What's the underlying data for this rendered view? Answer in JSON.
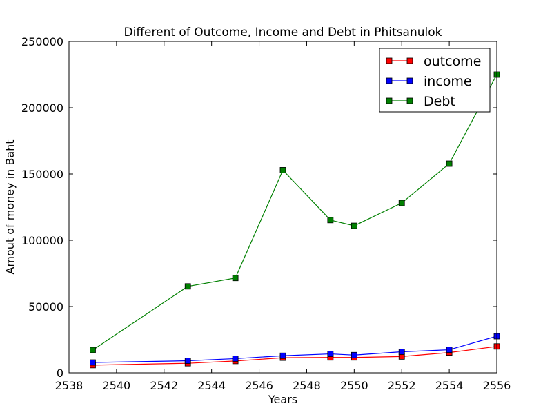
{
  "chart_data": {
    "type": "line",
    "title": "Different of Outcome, Income and Debt in Phitsanulok",
    "xlabel": "Years",
    "ylabel": "Amout of money in Baht",
    "xlim": [
      2538,
      2556
    ],
    "ylim": [
      0,
      250000
    ],
    "xticks": [
      2538,
      2540,
      2542,
      2544,
      2546,
      2548,
      2550,
      2552,
      2554,
      2556
    ],
    "yticks": [
      0,
      50000,
      100000,
      150000,
      200000,
      250000
    ],
    "x": [
      2539,
      2543,
      2545,
      2547,
      2549,
      2550,
      2552,
      2554,
      2556
    ],
    "grid": false,
    "legend_position": "top-right",
    "series": [
      {
        "name": "outcome",
        "color": "#ff0000",
        "marker": "square",
        "values": [
          5800,
          7200,
          8900,
          11400,
          11600,
          11600,
          12300,
          15300,
          19900
        ]
      },
      {
        "name": "income",
        "color": "#0000ff",
        "marker": "square",
        "values": [
          7800,
          9100,
          10700,
          12900,
          14300,
          13400,
          15900,
          17400,
          27600
        ]
      },
      {
        "name": "Debt",
        "color": "#008000",
        "marker": "square",
        "values": [
          17200,
          65200,
          71500,
          152900,
          115200,
          110900,
          128100,
          157800,
          225000
        ]
      }
    ]
  }
}
